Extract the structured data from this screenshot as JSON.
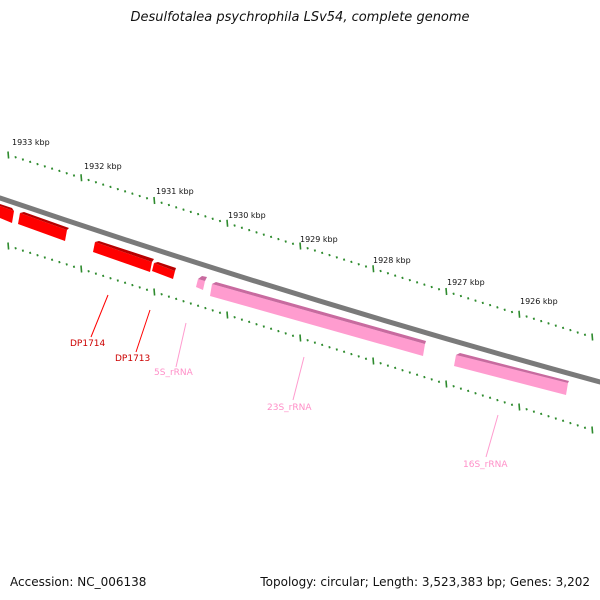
{
  "title": "Desulfotalea psychrophila LSv54, complete genome",
  "footer": {
    "accession": "Accession: NC_006138",
    "summary": "Topology: circular; Length: 3,523,383 bp; Genes: 3,202"
  },
  "colors": {
    "backbone": "#7a7a7a",
    "tick": "#2e8b2e",
    "gene_red": "#ff0000",
    "gene_red_dark": "#b80000",
    "rna_pink": "#ff9ccf",
    "rna_pink_dark": "#c86a9f"
  },
  "scale": {
    "labels": [
      "1933 kbp",
      "1932 kbp",
      "1931 kbp",
      "1930 kbp",
      "1929 kbp",
      "1928 kbp",
      "1927 kbp",
      "1926 kbp"
    ]
  },
  "features": {
    "labels": [
      {
        "text": "DP1714",
        "kind": "gene"
      },
      {
        "text": "DP1713",
        "kind": "gene"
      },
      {
        "text": "5S_rRNA",
        "kind": "rna"
      },
      {
        "text": "23S_rRNA",
        "kind": "rna"
      },
      {
        "text": "16S_rRNA",
        "kind": "rna"
      }
    ]
  }
}
